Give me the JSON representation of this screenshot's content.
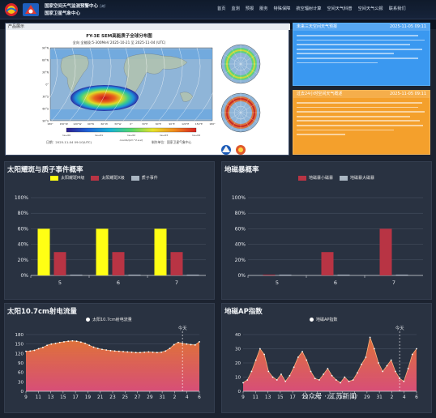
{
  "header": {
    "title_line1": "国家空间天气监测预警中心",
    "title_tag": "[英]",
    "title_line2": "国家卫星气象中心",
    "nav": [
      "首页",
      "监测",
      "预报",
      "服务",
      "特殊保障",
      "航空辐射计算",
      "空间天气科普",
      "空间天气公报",
      "联系我们"
    ]
  },
  "product": {
    "tab": "产品展示",
    "map_title": "FY-3E SEM高能质子全球分布图",
    "map_subtitle": "全向  全能段:5-300MeV  2025-10-21 至 2025-11-04 (UTC)",
    "lat_ticks": [
      "90°N",
      "60°N",
      "30°N",
      "0°",
      "30°S",
      "60°S",
      "90°S"
    ],
    "lon_ticks": [
      "180°",
      "150°W",
      "120°W",
      "90°W",
      "60°W",
      "30°W",
      "0°",
      "30°E",
      "60°E",
      "90°E",
      "120°E",
      "150°E",
      "180°"
    ],
    "colorbar_ticks": [
      "1e+00",
      "1e+01",
      "1e+02",
      "1e+03",
      "1e+04"
    ],
    "colorbar_unit": "counts/(cm^2·s·sr)",
    "footer_left": "日期：2025-11-04 09:10(UTC)",
    "footer_right": "制作单位：国家卫星气象中心",
    "colors": [
      "#2d1d8f",
      "#1d63d8",
      "#16b2d6",
      "#52d66c",
      "#e6e22a",
      "#f08a1c",
      "#d92020"
    ]
  },
  "alerts": [
    {
      "title": "未来三天空间天气预报",
      "date": "2025-11-05 09:11",
      "color": "#3a98f0"
    },
    {
      "title": "过去24小时空间天气概述",
      "date": "2025-11-05 09:11",
      "color": "#f4a02c"
    }
  ],
  "sep_chart": {
    "title": "太阳耀斑与质子事件概率",
    "type": "bar",
    "categories": [
      "5",
      "6",
      "7"
    ],
    "series": [
      {
        "name": "太阳耀斑M级",
        "values": [
          60,
          60,
          60
        ],
        "color": "#ffff14"
      },
      {
        "name": "太阳耀斑X级",
        "values": [
          30,
          30,
          30
        ],
        "color": "#b83444"
      },
      {
        "name": "质子事件",
        "values": [
          1,
          1,
          1
        ],
        "color": "#aab6c2"
      }
    ],
    "ylim": [
      0,
      100
    ],
    "yticks": [
      "0%",
      "20%",
      "40%",
      "60%",
      "80%",
      "100%"
    ]
  },
  "storm_chart": {
    "title": "地磁暴概率",
    "type": "bar",
    "categories": [
      "5",
      "6",
      "7"
    ],
    "series": [
      {
        "name": "地磁暴小磁暴",
        "values": [
          1,
          30,
          60
        ],
        "color": "#b83444"
      },
      {
        "name": "地磁暴大磁暴",
        "values": [
          1,
          1,
          1
        ],
        "color": "#aab6c2"
      }
    ],
    "ylim": [
      0,
      100
    ],
    "yticks": [
      "0%",
      "20%",
      "40%",
      "60%",
      "80%",
      "100%"
    ]
  },
  "flux_chart": {
    "title": "太阳10.7cm射电流量",
    "type": "area",
    "legend": "太阳10.7cm射电流量",
    "today_label": "今天",
    "x_labels": [
      "9",
      "11",
      "13",
      "15",
      "17",
      "19",
      "21",
      "23",
      "25",
      "27",
      "29",
      "31",
      "2",
      "4",
      "6"
    ],
    "values": [
      127,
      128,
      130,
      135,
      139,
      146,
      150,
      152,
      155,
      157,
      159,
      160,
      159,
      156,
      152,
      146,
      140,
      136,
      133,
      131,
      129,
      128,
      127,
      126,
      125,
      124,
      123,
      123,
      124,
      125,
      124,
      123,
      124,
      128,
      136,
      148,
      155,
      152,
      150,
      148,
      147,
      157
    ],
    "today_index": 37,
    "ylim": [
      0,
      180
    ],
    "yticks": [
      "0",
      "30",
      "60",
      "90",
      "120",
      "150",
      "180"
    ]
  },
  "ap_chart": {
    "title": "地磁AP指数",
    "type": "area",
    "legend": "地磁AP指数",
    "today_label": "今天",
    "x_labels": [
      "9",
      "11",
      "13",
      "15",
      "17",
      "19",
      "21",
      "23",
      "25",
      "27",
      "29",
      "31",
      "2",
      "4",
      "6"
    ],
    "values": [
      6,
      8,
      14,
      22,
      30,
      26,
      14,
      10,
      8,
      12,
      7,
      11,
      17,
      24,
      28,
      22,
      14,
      9,
      8,
      12,
      16,
      11,
      8,
      6,
      10,
      7,
      8,
      13,
      19,
      24,
      38,
      30,
      20,
      14,
      18,
      22,
      14,
      9,
      7,
      16,
      26,
      30
    ],
    "today_index": 37,
    "ylim": [
      0,
      40
    ],
    "yticks": [
      "0",
      "10",
      "20",
      "30",
      "40"
    ]
  },
  "watermark": "公众号 · 江苏新闻"
}
